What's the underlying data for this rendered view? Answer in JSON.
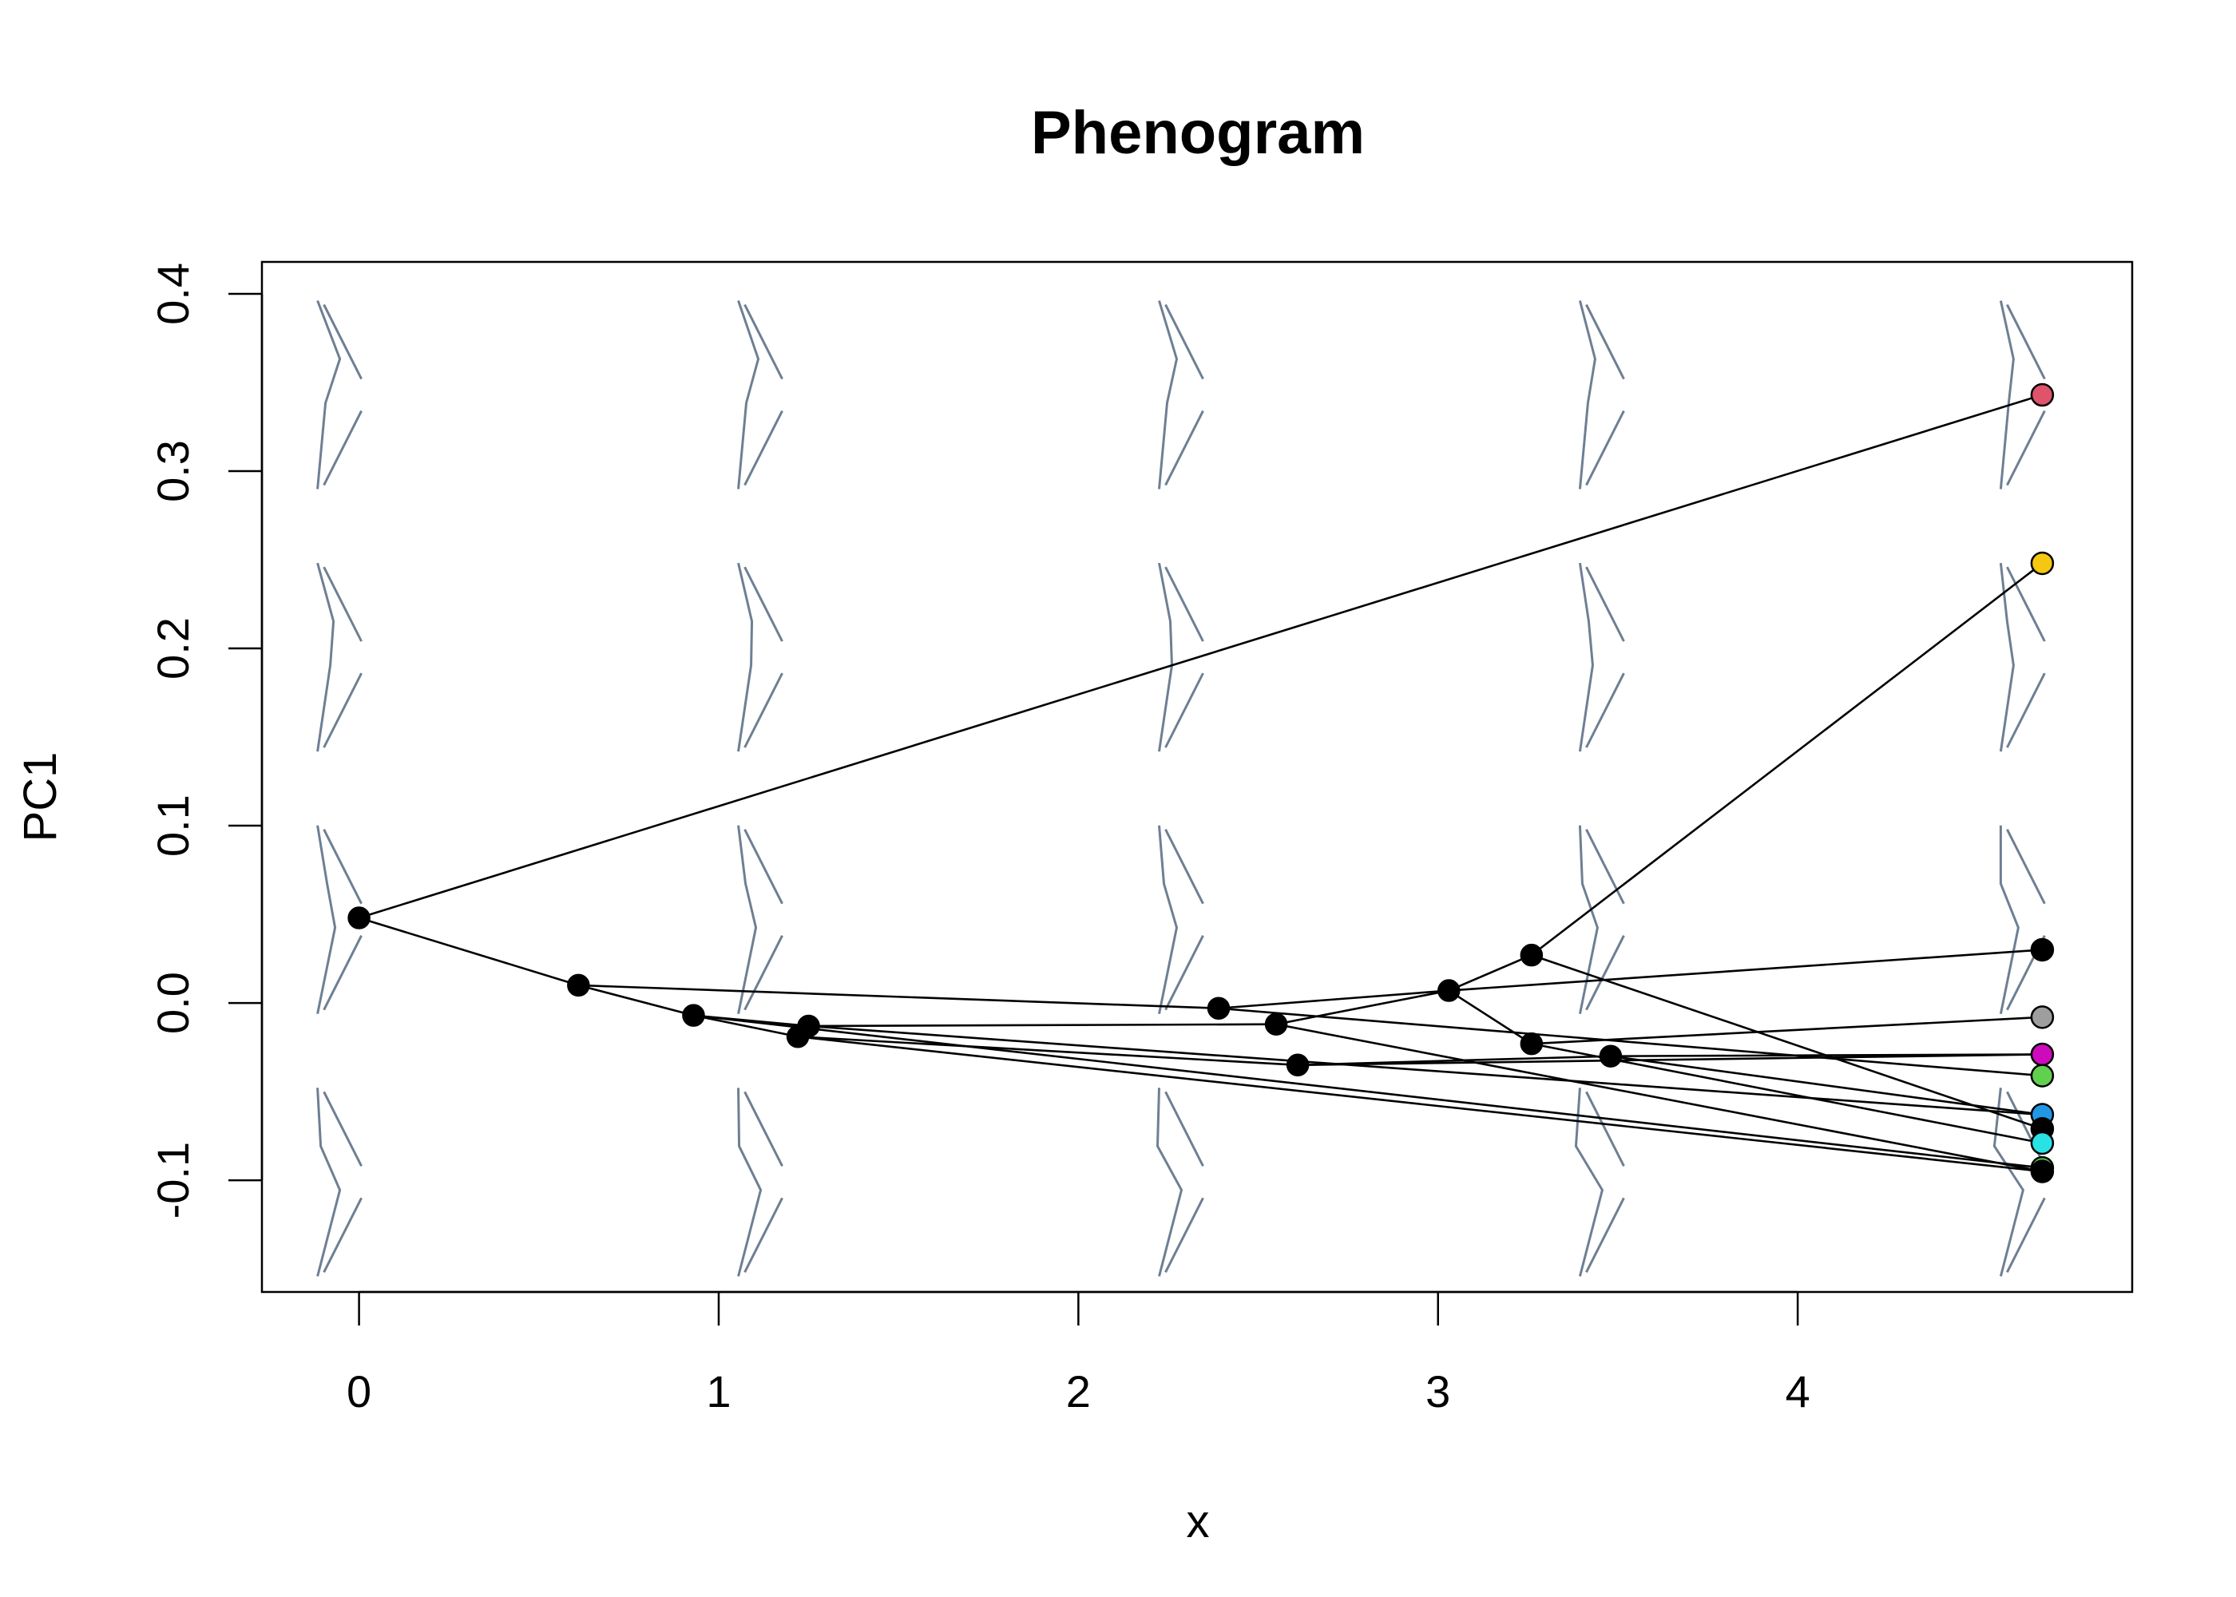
{
  "chart_data": {
    "type": "scatter",
    "title": "Phenogram",
    "xlabel": "x",
    "ylabel": "PC1",
    "xlim": [
      -0.27,
      4.93
    ],
    "ylim": [
      -0.163,
      0.418
    ],
    "xticks": [
      0,
      1,
      2,
      3,
      4
    ],
    "yticks": [
      -0.1,
      0.0,
      0.1,
      0.2,
      0.3,
      0.4
    ],
    "xtick_labels": [
      "0",
      "1",
      "2",
      "3",
      "4"
    ],
    "ytick_labels": [
      "-0.1",
      "0.0",
      "0.1",
      "0.2",
      "0.3",
      "0.4"
    ],
    "grid": false,
    "legend": "none",
    "line_color": "#000000",
    "shape_color": "#6e7f93",
    "nodes": [
      {
        "id": "n0",
        "x": 0.0,
        "y": 0.048
      },
      {
        "id": "n1",
        "x": 0.61,
        "y": 0.01
      },
      {
        "id": "n2",
        "x": 0.93,
        "y": -0.007
      },
      {
        "id": "n3",
        "x": 1.22,
        "y": -0.019
      },
      {
        "id": "n4",
        "x": 1.25,
        "y": -0.013
      },
      {
        "id": "n5",
        "x": 2.39,
        "y": -0.003
      },
      {
        "id": "n6",
        "x": 2.55,
        "y": -0.012
      },
      {
        "id": "n7",
        "x": 2.61,
        "y": -0.035
      },
      {
        "id": "n8",
        "x": 3.03,
        "y": 0.007
      },
      {
        "id": "n9",
        "x": 3.26,
        "y": 0.027
      },
      {
        "id": "n10",
        "x": 3.26,
        "y": -0.023
      },
      {
        "id": "n11",
        "x": 3.48,
        "y": -0.03
      }
    ],
    "tips": [
      {
        "id": "t1",
        "x": 4.68,
        "y": 0.343,
        "color": "#df536b"
      },
      {
        "id": "t2",
        "x": 4.68,
        "y": 0.248,
        "color": "#f5c710"
      },
      {
        "id": "t3",
        "x": 4.68,
        "y": 0.03,
        "color": "#000000"
      },
      {
        "id": "t4",
        "x": 4.68,
        "y": -0.008,
        "color": "#9e9e9e"
      },
      {
        "id": "t5",
        "x": 4.68,
        "y": -0.029,
        "color": "#cd0bbc"
      },
      {
        "id": "t6",
        "x": 4.68,
        "y": -0.041,
        "color": "#61d04f"
      },
      {
        "id": "t7",
        "x": 4.68,
        "y": -0.063,
        "color": "#2297e6"
      },
      {
        "id": "t8",
        "x": 4.68,
        "y": -0.071,
        "color": "#000000"
      },
      {
        "id": "t9",
        "x": 4.68,
        "y": -0.079,
        "color": "#28e2e5"
      },
      {
        "id": "t10",
        "x": 4.68,
        "y": -0.093,
        "color": "#61d04f"
      },
      {
        "id": "t11",
        "x": 4.68,
        "y": -0.095,
        "color": "#000000"
      }
    ],
    "edges": [
      [
        "n0",
        "t1"
      ],
      [
        "n0",
        "n1"
      ],
      [
        "n1",
        "n2"
      ],
      [
        "n1",
        "n5"
      ],
      [
        "n5",
        "t6"
      ],
      [
        "n5",
        "n8"
      ],
      [
        "n2",
        "n3"
      ],
      [
        "n2",
        "n4"
      ],
      [
        "n2",
        "t10"
      ],
      [
        "n4",
        "n6"
      ],
      [
        "n4",
        "t7"
      ],
      [
        "n6",
        "n8"
      ],
      [
        "n6",
        "t11"
      ],
      [
        "n8",
        "n9"
      ],
      [
        "n8",
        "n10"
      ],
      [
        "n8",
        "t3"
      ],
      [
        "n9",
        "t2"
      ],
      [
        "n9",
        "t8"
      ],
      [
        "n10",
        "t4"
      ],
      [
        "n10",
        "t9"
      ],
      [
        "n3",
        "n7"
      ],
      [
        "n3",
        "t11"
      ],
      [
        "n7",
        "n11"
      ],
      [
        "n7",
        "t5"
      ],
      [
        "n11",
        "t5"
      ],
      [
        "n11",
        "t7"
      ]
    ]
  }
}
